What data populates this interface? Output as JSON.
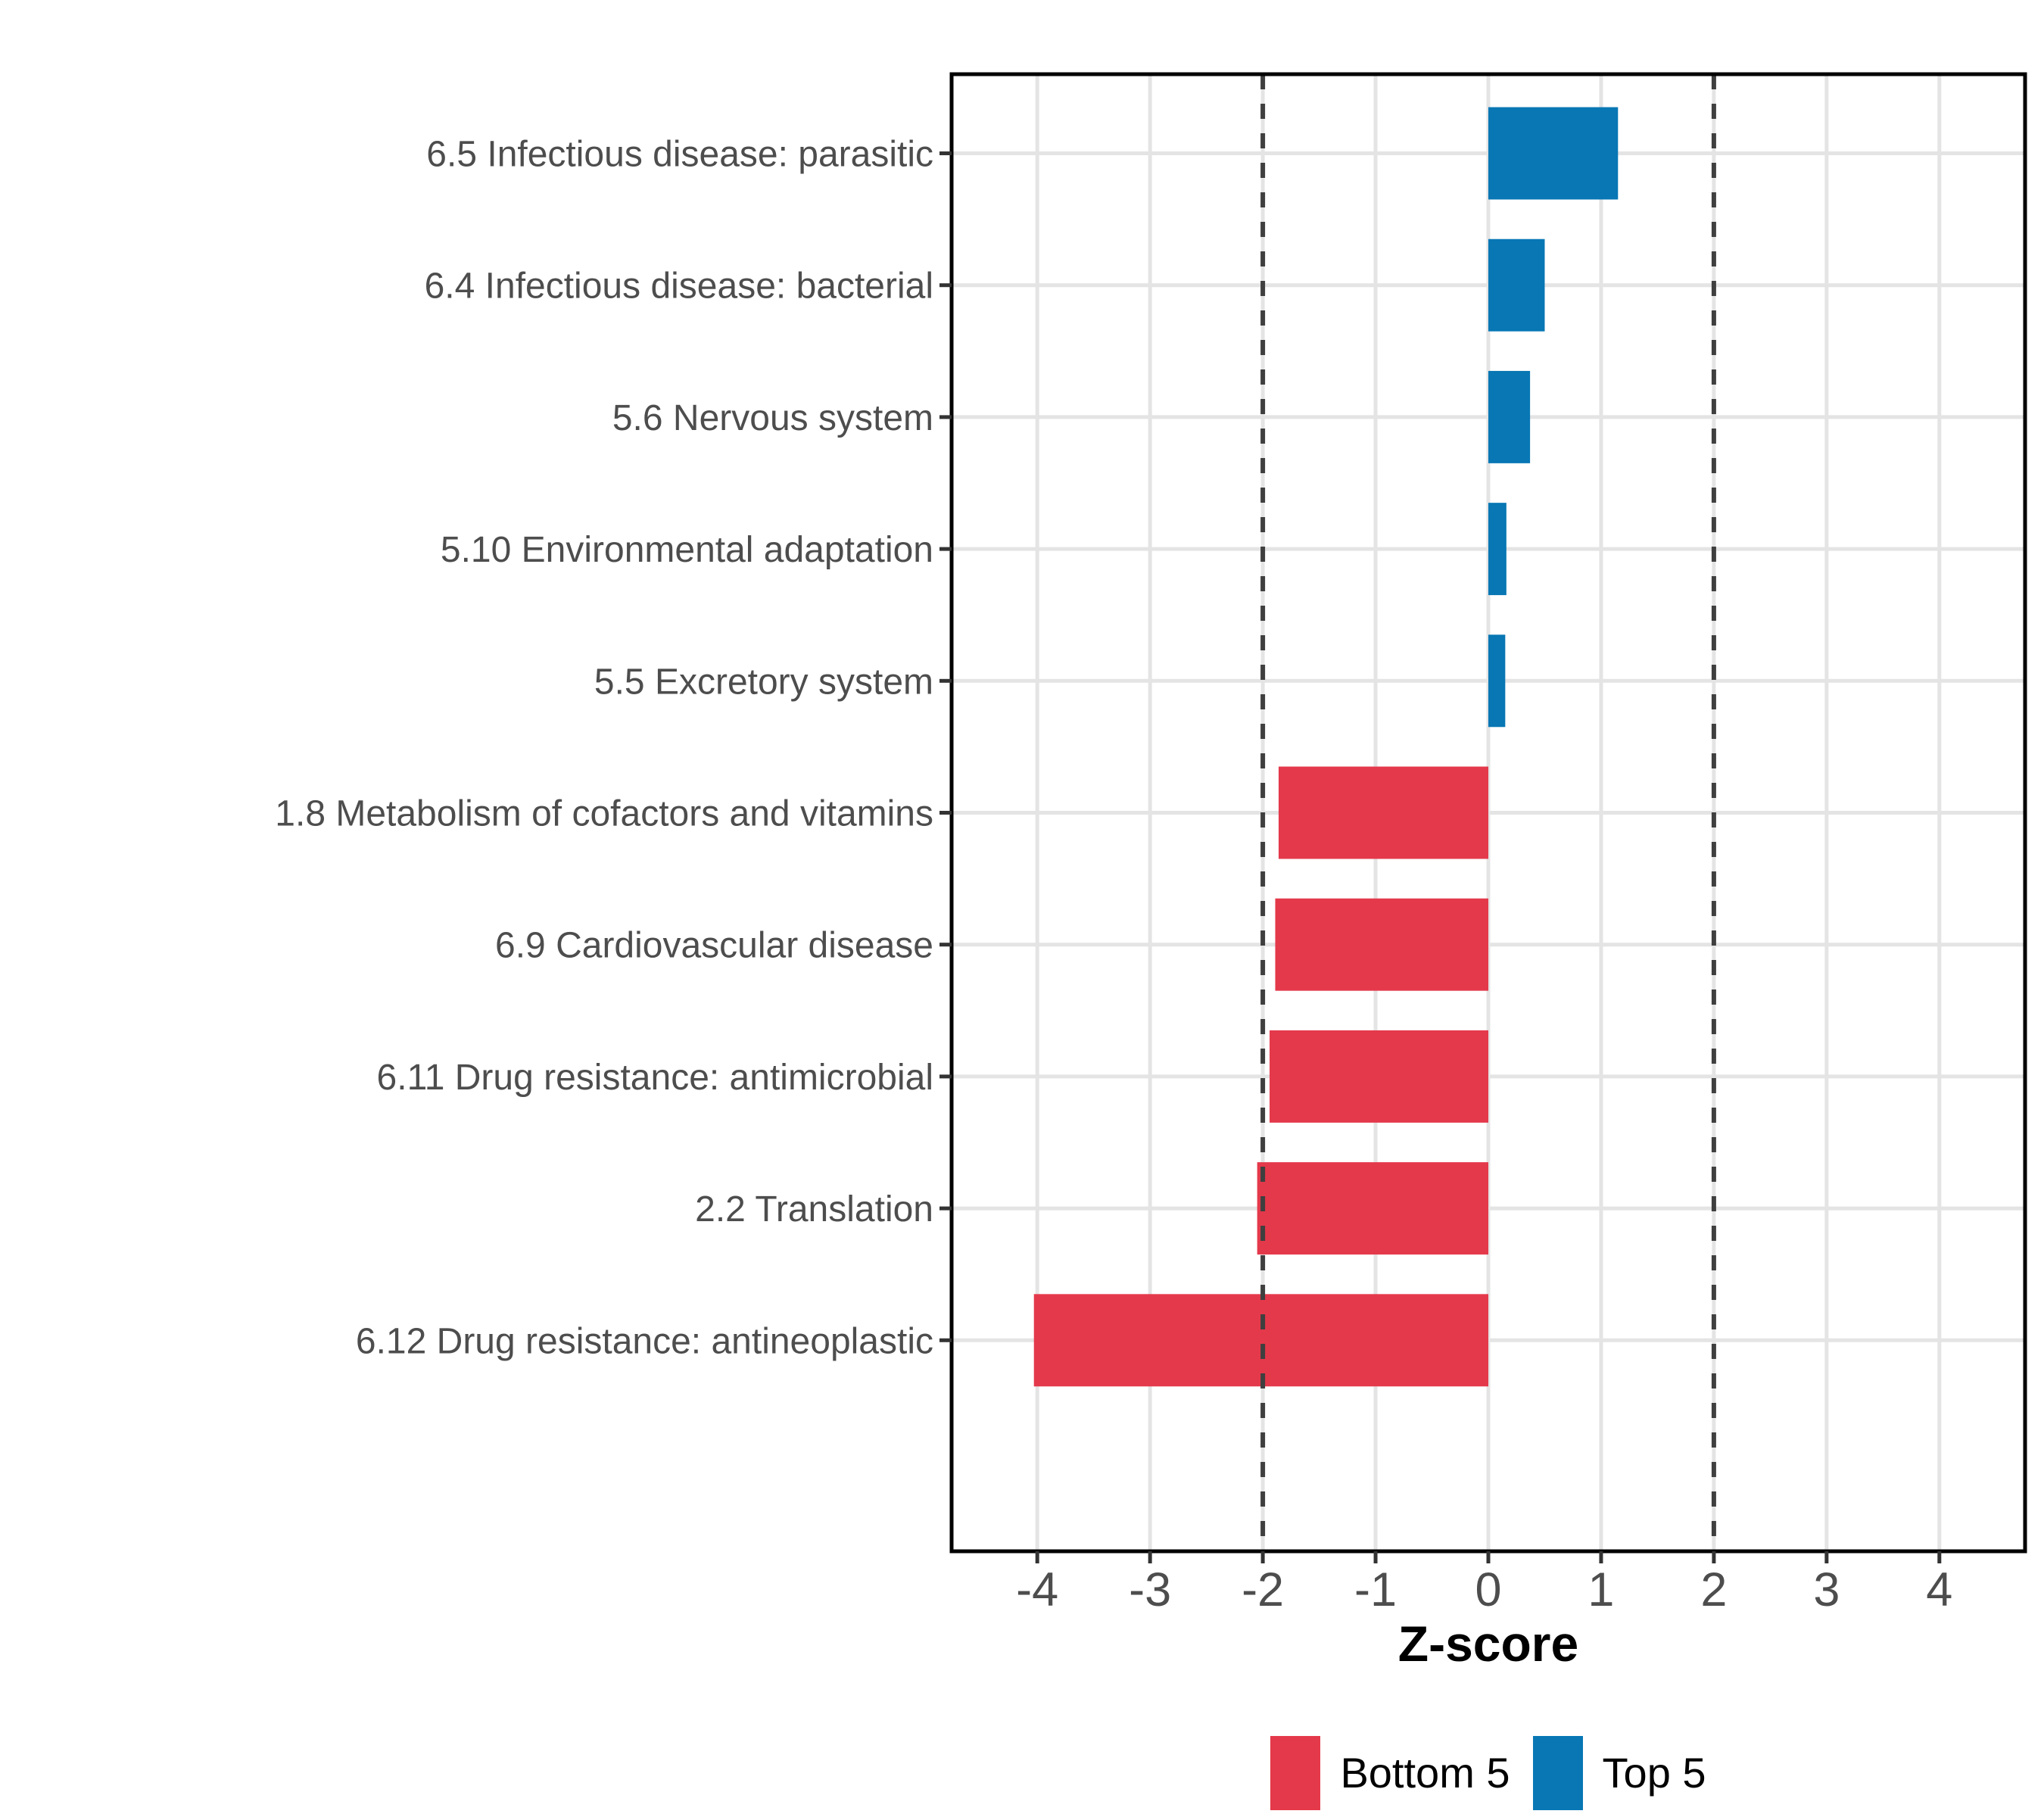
{
  "chart_data": {
    "type": "bar",
    "orientation": "horizontal",
    "title": "",
    "xlabel": "Z-score",
    "ylabel": "",
    "xlim": [
      -4.76,
      4.76
    ],
    "x_ticks": [
      -4,
      -3,
      -2,
      -1,
      0,
      1,
      2,
      3,
      4
    ],
    "x_tick_labels": [
      "-4",
      "-3",
      "-2",
      "-1",
      "0",
      "1",
      "2",
      "3",
      "4"
    ],
    "reference_lines": [
      -2,
      2
    ],
    "grid": true,
    "legend_position": "bottom",
    "bars": [
      {
        "category": "6.5 Infectious disease: parasitic",
        "value": 1.15,
        "group": "Top 5"
      },
      {
        "category": "6.4 Infectious disease: bacterial",
        "value": 0.5,
        "group": "Top 5"
      },
      {
        "category": "5.6 Nervous system",
        "value": 0.37,
        "group": "Top 5"
      },
      {
        "category": "5.10 Environmental adaptation",
        "value": 0.16,
        "group": "Top 5"
      },
      {
        "category": "5.5 Excretory system",
        "value": 0.15,
        "group": "Top 5"
      },
      {
        "category": "1.8 Metabolism of cofactors and vitamins",
        "value": -1.86,
        "group": "Bottom 5"
      },
      {
        "category": "6.9 Cardiovascular disease",
        "value": -1.89,
        "group": "Bottom 5"
      },
      {
        "category": "6.11 Drug resistance: antimicrobial",
        "value": -1.94,
        "group": "Bottom 5"
      },
      {
        "category": "2.2 Translation",
        "value": -2.05,
        "group": "Bottom 5"
      },
      {
        "category": "6.12 Drug resistance: antineoplastic",
        "value": -4.03,
        "group": "Bottom 5"
      }
    ],
    "groups": [
      {
        "name": "Bottom 5",
        "color": "#E4394B"
      },
      {
        "name": "Top 5",
        "color": "#0877B4"
      }
    ]
  },
  "style_colors": {
    "axis_text": "#4D4D4D",
    "axis_line": "#000000",
    "tick_mark": "#333333",
    "gridline": "#E4E4E4",
    "reference_line": "#3F3F3F",
    "background": "#FFFFFF"
  }
}
